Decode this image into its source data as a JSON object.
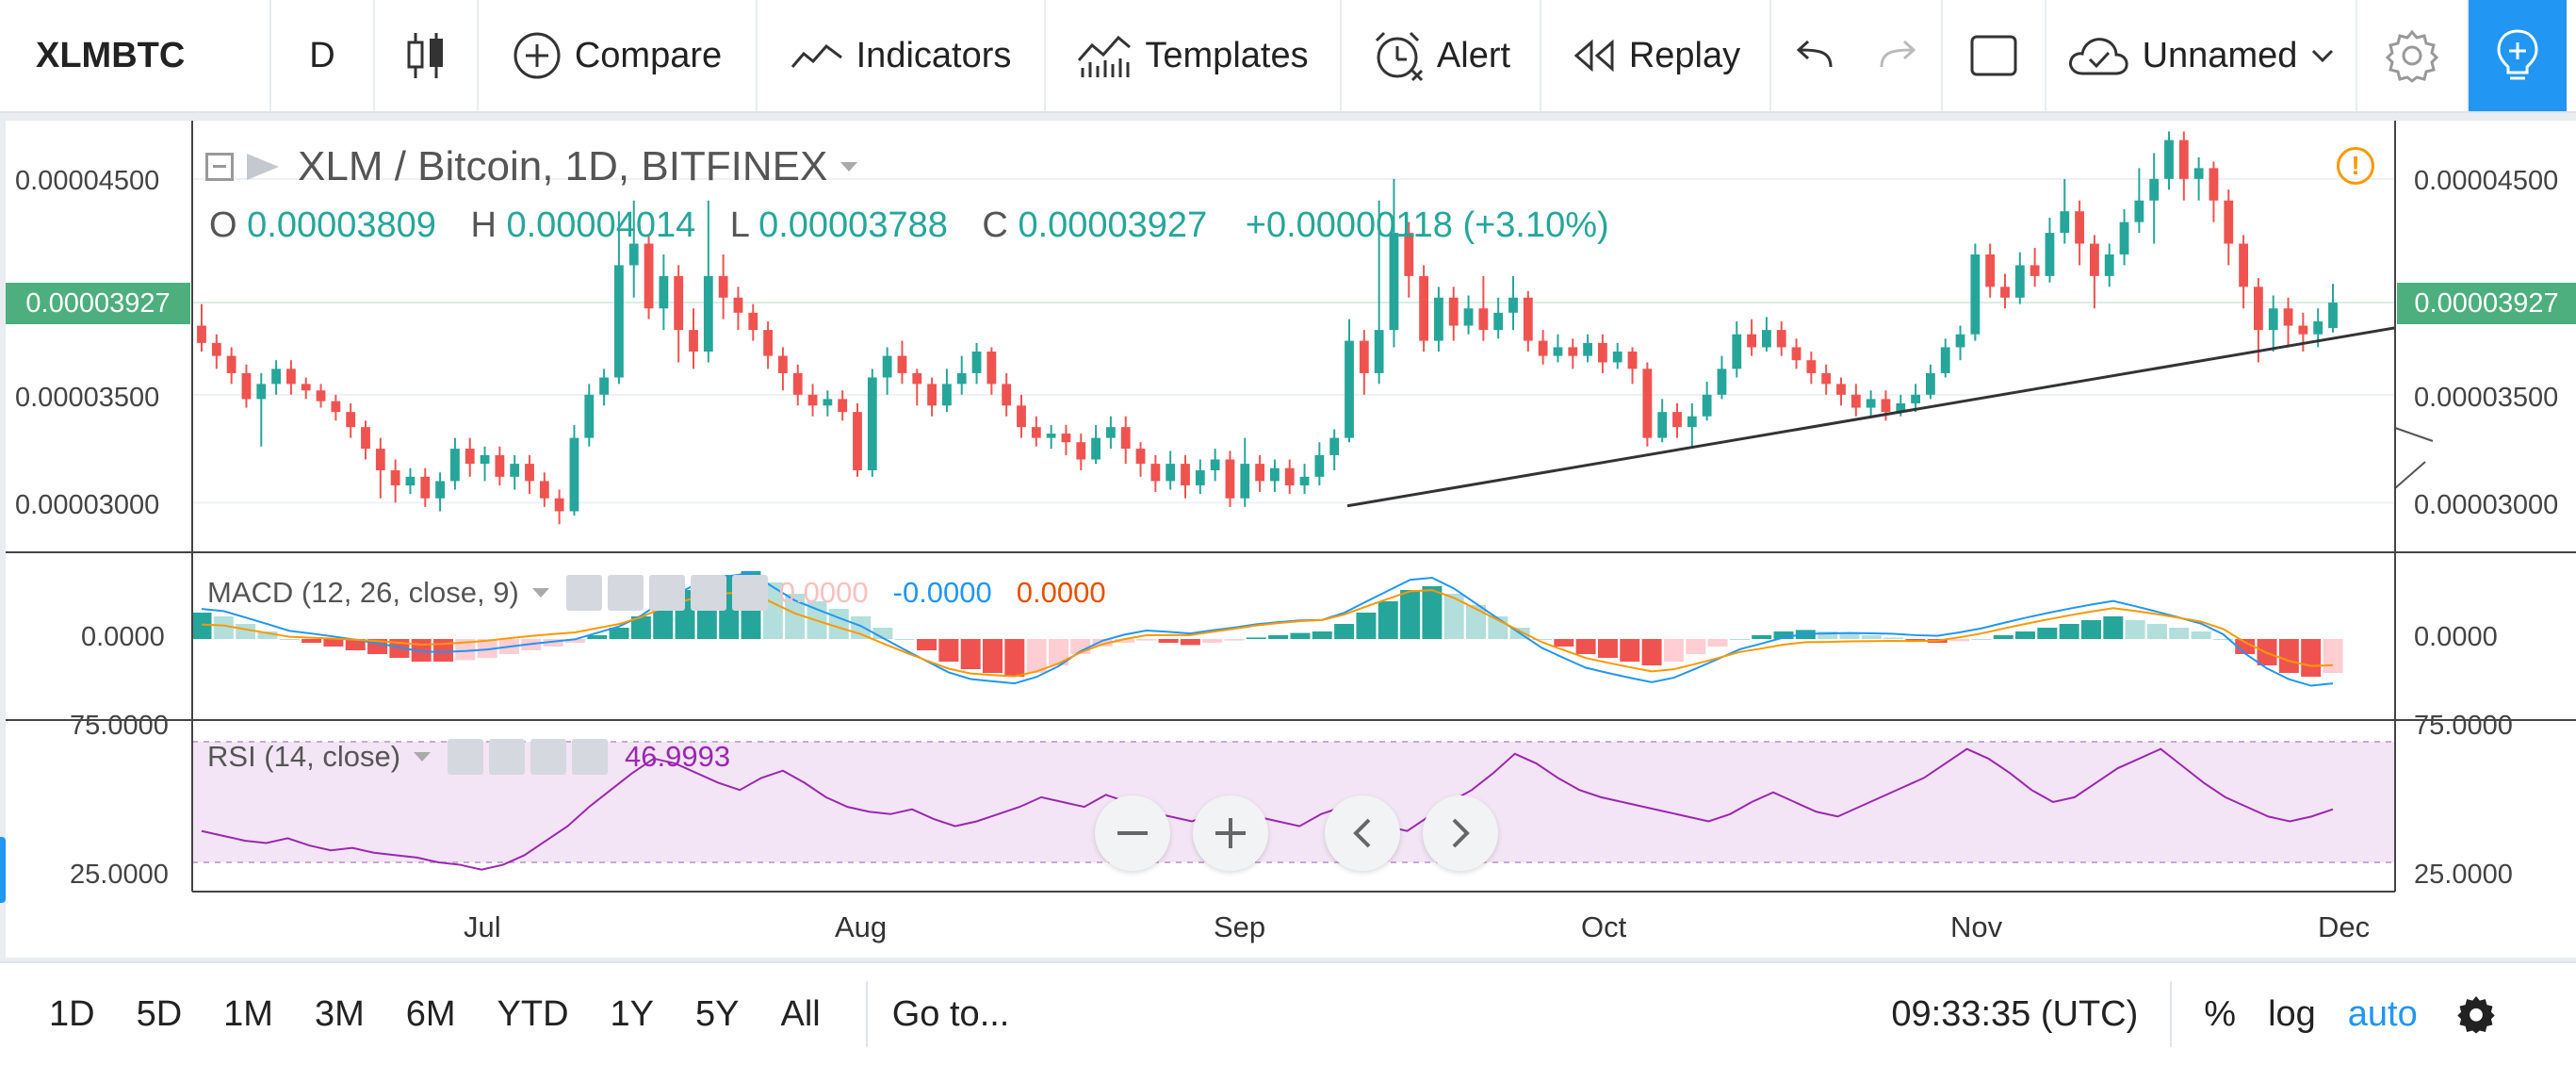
{
  "toolbar": {
    "symbol": "XLMBTC",
    "interval": "D",
    "compare": "Compare",
    "indicators": "Indicators",
    "templates": "Templates",
    "alert": "Alert",
    "replay": "Replay",
    "layout_name": "Unnamed"
  },
  "main": {
    "title": "XLM / Bitcoin, 1D, BITFINEX",
    "o_label": "O",
    "o_value": "0.00003809",
    "h_label": "H",
    "h_value": "0.00004014",
    "l_label": "L",
    "l_value": "0.00003788",
    "c_label": "C",
    "c_value": "0.00003927",
    "change": "+0.00000118 (+3.10%)",
    "price_ticks": [
      "0.00004500",
      "0.00003500",
      "0.00003000"
    ],
    "last_price": "0.00003927"
  },
  "macd": {
    "title": "MACD (12, 26, close, 9)",
    "val1": "0.0000",
    "val2": "-0.0000",
    "val3": "0.0000",
    "axis": "0.0000"
  },
  "rsi": {
    "title": "RSI (14, close)",
    "value": "46.9993",
    "axis_top": "75.0000",
    "axis_bottom": "25.0000"
  },
  "time_axis": [
    "Jul",
    "Aug",
    "Sep",
    "Oct",
    "Nov",
    "Dec"
  ],
  "bottom": {
    "ranges": [
      "1D",
      "5D",
      "1M",
      "3M",
      "6M",
      "YTD",
      "1Y",
      "5Y",
      "All"
    ],
    "goto": "Go to...",
    "time": "09:33:35 (UTC)",
    "percent": "%",
    "log": "log",
    "auto": "auto"
  },
  "colors": {
    "up": "#26a69a",
    "down": "#ef5350",
    "up_light": "#b2dfdb",
    "down_light": "#ffcdd2",
    "macd_line": "#2196f3",
    "signal_line": "#ff9800",
    "rsi_line": "#9c27b0",
    "rsi_band": "#f3e5f5",
    "accent": "#2196f3"
  },
  "chart_data": {
    "type": "candlestick",
    "xlabel": "",
    "ylabel": "",
    "ylim": [
      2.77e-05,
      4.77e-05
    ],
    "candles": [
      {
        "o": 3.82,
        "c": 3.74,
        "h": 3.92,
        "l": 3.7
      },
      {
        "o": 3.74,
        "c": 3.68,
        "h": 3.78,
        "l": 3.62
      },
      {
        "o": 3.68,
        "c": 3.6,
        "h": 3.72,
        "l": 3.55
      },
      {
        "o": 3.6,
        "c": 3.48,
        "h": 3.64,
        "l": 3.44
      },
      {
        "o": 3.48,
        "c": 3.55,
        "h": 3.6,
        "l": 3.26
      },
      {
        "o": 3.55,
        "c": 3.62,
        "h": 3.66,
        "l": 3.5
      },
      {
        "o": 3.62,
        "c": 3.55,
        "h": 3.66,
        "l": 3.5
      },
      {
        "o": 3.55,
        "c": 3.52,
        "h": 3.58,
        "l": 3.48
      },
      {
        "o": 3.52,
        "c": 3.47,
        "h": 3.55,
        "l": 3.44
      },
      {
        "o": 3.47,
        "c": 3.42,
        "h": 3.5,
        "l": 3.38
      },
      {
        "o": 3.42,
        "c": 3.35,
        "h": 3.46,
        "l": 3.3
      },
      {
        "o": 3.35,
        "c": 3.25,
        "h": 3.38,
        "l": 3.2
      },
      {
        "o": 3.25,
        "c": 3.15,
        "h": 3.3,
        "l": 3.02
      },
      {
        "o": 3.15,
        "c": 3.08,
        "h": 3.2,
        "l": 3.0
      },
      {
        "o": 3.08,
        "c": 3.12,
        "h": 3.16,
        "l": 3.04
      },
      {
        "o": 3.12,
        "c": 3.02,
        "h": 3.16,
        "l": 2.98
      },
      {
        "o": 3.02,
        "c": 3.1,
        "h": 3.14,
        "l": 2.96
      },
      {
        "o": 3.1,
        "c": 3.25,
        "h": 3.3,
        "l": 3.06
      },
      {
        "o": 3.25,
        "c": 3.18,
        "h": 3.3,
        "l": 3.12
      },
      {
        "o": 3.18,
        "c": 3.22,
        "h": 3.26,
        "l": 3.1
      },
      {
        "o": 3.22,
        "c": 3.12,
        "h": 3.26,
        "l": 3.08
      },
      {
        "o": 3.12,
        "c": 3.18,
        "h": 3.22,
        "l": 3.06
      },
      {
        "o": 3.18,
        "c": 3.1,
        "h": 3.22,
        "l": 3.04
      },
      {
        "o": 3.1,
        "c": 3.02,
        "h": 3.14,
        "l": 2.98
      },
      {
        "o": 3.02,
        "c": 2.96,
        "h": 3.06,
        "l": 2.9
      },
      {
        "o": 2.96,
        "c": 3.3,
        "h": 3.36,
        "l": 2.94
      },
      {
        "o": 3.3,
        "c": 3.5,
        "h": 3.55,
        "l": 3.26
      },
      {
        "o": 3.5,
        "c": 3.58,
        "h": 3.62,
        "l": 3.45
      },
      {
        "o": 3.58,
        "c": 4.1,
        "h": 4.35,
        "l": 3.55
      },
      {
        "o": 4.1,
        "c": 4.2,
        "h": 4.4,
        "l": 3.95
      },
      {
        "o": 4.2,
        "c": 3.9,
        "h": 4.24,
        "l": 3.85
      },
      {
        "o": 3.9,
        "c": 4.05,
        "h": 4.15,
        "l": 3.8
      },
      {
        "o": 4.05,
        "c": 3.8,
        "h": 4.1,
        "l": 3.65
      },
      {
        "o": 3.8,
        "c": 3.7,
        "h": 3.9,
        "l": 3.62
      },
      {
        "o": 3.7,
        "c": 4.05,
        "h": 4.4,
        "l": 3.65
      },
      {
        "o": 4.05,
        "c": 3.95,
        "h": 4.15,
        "l": 3.85
      },
      {
        "o": 3.95,
        "c": 3.88,
        "h": 4.0,
        "l": 3.8
      },
      {
        "o": 3.88,
        "c": 3.8,
        "h": 3.92,
        "l": 3.75
      },
      {
        "o": 3.8,
        "c": 3.68,
        "h": 3.84,
        "l": 3.62
      },
      {
        "o": 3.68,
        "c": 3.6,
        "h": 3.72,
        "l": 3.52
      },
      {
        "o": 3.6,
        "c": 3.5,
        "h": 3.64,
        "l": 3.45
      },
      {
        "o": 3.5,
        "c": 3.45,
        "h": 3.55,
        "l": 3.4
      },
      {
        "o": 3.45,
        "c": 3.48,
        "h": 3.52,
        "l": 3.4
      },
      {
        "o": 3.48,
        "c": 3.42,
        "h": 3.52,
        "l": 3.38
      },
      {
        "o": 3.42,
        "c": 3.15,
        "h": 3.46,
        "l": 3.12
      },
      {
        "o": 3.15,
        "c": 3.58,
        "h": 3.62,
        "l": 3.12
      },
      {
        "o": 3.58,
        "c": 3.68,
        "h": 3.72,
        "l": 3.5
      },
      {
        "o": 3.68,
        "c": 3.6,
        "h": 3.75,
        "l": 3.55
      },
      {
        "o": 3.6,
        "c": 3.55,
        "h": 3.62,
        "l": 3.45
      },
      {
        "o": 3.55,
        "c": 3.45,
        "h": 3.58,
        "l": 3.4
      },
      {
        "o": 3.45,
        "c": 3.55,
        "h": 3.62,
        "l": 3.42
      },
      {
        "o": 3.55,
        "c": 3.6,
        "h": 3.68,
        "l": 3.5
      },
      {
        "o": 3.6,
        "c": 3.7,
        "h": 3.74,
        "l": 3.55
      },
      {
        "o": 3.7,
        "c": 3.55,
        "h": 3.72,
        "l": 3.5
      },
      {
        "o": 3.55,
        "c": 3.45,
        "h": 3.6,
        "l": 3.4
      },
      {
        "o": 3.45,
        "c": 3.35,
        "h": 3.5,
        "l": 3.3
      },
      {
        "o": 3.35,
        "c": 3.3,
        "h": 3.4,
        "l": 3.26
      },
      {
        "o": 3.3,
        "c": 3.32,
        "h": 3.36,
        "l": 3.25
      },
      {
        "o": 3.32,
        "c": 3.28,
        "h": 3.36,
        "l": 3.22
      },
      {
        "o": 3.28,
        "c": 3.2,
        "h": 3.32,
        "l": 3.15
      },
      {
        "o": 3.2,
        "c": 3.3,
        "h": 3.36,
        "l": 3.18
      },
      {
        "o": 3.3,
        "c": 3.35,
        "h": 3.4,
        "l": 3.25
      },
      {
        "o": 3.35,
        "c": 3.25,
        "h": 3.4,
        "l": 3.18
      },
      {
        "o": 3.25,
        "c": 3.18,
        "h": 3.28,
        "l": 3.12
      },
      {
        "o": 3.18,
        "c": 3.1,
        "h": 3.22,
        "l": 3.05
      },
      {
        "o": 3.1,
        "c": 3.18,
        "h": 3.24,
        "l": 3.06
      },
      {
        "o": 3.18,
        "c": 3.08,
        "h": 3.22,
        "l": 3.02
      },
      {
        "o": 3.08,
        "c": 3.15,
        "h": 3.2,
        "l": 3.04
      },
      {
        "o": 3.15,
        "c": 3.2,
        "h": 3.25,
        "l": 3.1
      },
      {
        "o": 3.2,
        "c": 3.02,
        "h": 3.24,
        "l": 2.98
      },
      {
        "o": 3.02,
        "c": 3.18,
        "h": 3.3,
        "l": 2.98
      },
      {
        "o": 3.18,
        "c": 3.1,
        "h": 3.22,
        "l": 3.05
      },
      {
        "o": 3.1,
        "c": 3.16,
        "h": 3.2,
        "l": 3.05
      },
      {
        "o": 3.16,
        "c": 3.08,
        "h": 3.2,
        "l": 3.04
      },
      {
        "o": 3.08,
        "c": 3.12,
        "h": 3.18,
        "l": 3.04
      },
      {
        "o": 3.12,
        "c": 3.22,
        "h": 3.28,
        "l": 3.08
      },
      {
        "o": 3.22,
        "c": 3.3,
        "h": 3.34,
        "l": 3.15
      },
      {
        "o": 3.3,
        "c": 3.75,
        "h": 3.85,
        "l": 3.28
      },
      {
        "o": 3.75,
        "c": 3.6,
        "h": 3.8,
        "l": 3.5
      },
      {
        "o": 3.6,
        "c": 3.8,
        "h": 4.4,
        "l": 3.55
      },
      {
        "o": 3.8,
        "c": 4.25,
        "h": 4.5,
        "l": 3.72
      },
      {
        "o": 4.25,
        "c": 4.05,
        "h": 4.3,
        "l": 3.95
      },
      {
        "o": 4.05,
        "c": 3.75,
        "h": 4.1,
        "l": 3.7
      },
      {
        "o": 3.75,
        "c": 3.95,
        "h": 4.0,
        "l": 3.7
      },
      {
        "o": 3.95,
        "c": 3.82,
        "h": 4.0,
        "l": 3.75
      },
      {
        "o": 3.82,
        "c": 3.9,
        "h": 3.96,
        "l": 3.78
      },
      {
        "o": 3.9,
        "c": 3.8,
        "h": 4.05,
        "l": 3.75
      },
      {
        "o": 3.8,
        "c": 3.88,
        "h": 3.95,
        "l": 3.76
      },
      {
        "o": 3.88,
        "c": 3.95,
        "h": 4.05,
        "l": 3.8
      },
      {
        "o": 3.95,
        "c": 3.75,
        "h": 3.98,
        "l": 3.7
      },
      {
        "o": 3.75,
        "c": 3.68,
        "h": 3.8,
        "l": 3.64
      },
      {
        "o": 3.68,
        "c": 3.72,
        "h": 3.78,
        "l": 3.65
      },
      {
        "o": 3.72,
        "c": 3.68,
        "h": 3.76,
        "l": 3.62
      },
      {
        "o": 3.68,
        "c": 3.74,
        "h": 3.78,
        "l": 3.65
      },
      {
        "o": 3.74,
        "c": 3.65,
        "h": 3.78,
        "l": 3.6
      },
      {
        "o": 3.65,
        "c": 3.7,
        "h": 3.74,
        "l": 3.62
      },
      {
        "o": 3.7,
        "c": 3.62,
        "h": 3.72,
        "l": 3.55
      },
      {
        "o": 3.62,
        "c": 3.3,
        "h": 3.65,
        "l": 3.26
      },
      {
        "o": 3.3,
        "c": 3.42,
        "h": 3.48,
        "l": 3.28
      },
      {
        "o": 3.42,
        "c": 3.35,
        "h": 3.46,
        "l": 3.3
      },
      {
        "o": 3.35,
        "c": 3.4,
        "h": 3.46,
        "l": 3.25
      },
      {
        "o": 3.4,
        "c": 3.5,
        "h": 3.56,
        "l": 3.38
      },
      {
        "o": 3.5,
        "c": 3.62,
        "h": 3.68,
        "l": 3.48
      },
      {
        "o": 3.62,
        "c": 3.78,
        "h": 3.84,
        "l": 3.58
      },
      {
        "o": 3.78,
        "c": 3.72,
        "h": 3.85,
        "l": 3.68
      },
      {
        "o": 3.72,
        "c": 3.8,
        "h": 3.86,
        "l": 3.7
      },
      {
        "o": 3.8,
        "c": 3.72,
        "h": 3.84,
        "l": 3.68
      },
      {
        "o": 3.72,
        "c": 3.66,
        "h": 3.76,
        "l": 3.62
      },
      {
        "o": 3.66,
        "c": 3.6,
        "h": 3.7,
        "l": 3.55
      },
      {
        "o": 3.6,
        "c": 3.55,
        "h": 3.64,
        "l": 3.5
      },
      {
        "o": 3.55,
        "c": 3.5,
        "h": 3.58,
        "l": 3.45
      },
      {
        "o": 3.5,
        "c": 3.44,
        "h": 3.55,
        "l": 3.4
      },
      {
        "o": 3.44,
        "c": 3.48,
        "h": 3.52,
        "l": 3.4
      },
      {
        "o": 3.48,
        "c": 3.42,
        "h": 3.52,
        "l": 3.38
      },
      {
        "o": 3.42,
        "c": 3.46,
        "h": 3.5,
        "l": 3.4
      },
      {
        "o": 3.46,
        "c": 3.5,
        "h": 3.55,
        "l": 3.42
      },
      {
        "o": 3.5,
        "c": 3.6,
        "h": 3.64,
        "l": 3.48
      },
      {
        "o": 3.6,
        "c": 3.72,
        "h": 3.76,
        "l": 3.58
      },
      {
        "o": 3.72,
        "c": 3.78,
        "h": 3.82,
        "l": 3.66
      },
      {
        "o": 3.78,
        "c": 4.15,
        "h": 4.2,
        "l": 3.75
      },
      {
        "o": 4.15,
        "c": 4.0,
        "h": 4.2,
        "l": 3.95
      },
      {
        "o": 4.0,
        "c": 3.95,
        "h": 4.06,
        "l": 3.9
      },
      {
        "o": 3.95,
        "c": 4.1,
        "h": 4.16,
        "l": 3.92
      },
      {
        "o": 4.1,
        "c": 4.05,
        "h": 4.18,
        "l": 4.0
      },
      {
        "o": 4.05,
        "c": 4.25,
        "h": 4.32,
        "l": 4.02
      },
      {
        "o": 4.25,
        "c": 4.35,
        "h": 4.5,
        "l": 4.2
      },
      {
        "o": 4.35,
        "c": 4.2,
        "h": 4.4,
        "l": 4.1
      },
      {
        "o": 4.2,
        "c": 4.05,
        "h": 4.24,
        "l": 3.9
      },
      {
        "o": 4.05,
        "c": 4.15,
        "h": 4.2,
        "l": 4.0
      },
      {
        "o": 4.15,
        "c": 4.3,
        "h": 4.36,
        "l": 4.1
      },
      {
        "o": 4.3,
        "c": 4.4,
        "h": 4.55,
        "l": 4.25
      },
      {
        "o": 4.4,
        "c": 4.5,
        "h": 4.62,
        "l": 4.2
      },
      {
        "o": 4.5,
        "c": 4.68,
        "h": 4.72,
        "l": 4.45
      },
      {
        "o": 4.68,
        "c": 4.5,
        "h": 4.72,
        "l": 4.4
      },
      {
        "o": 4.5,
        "c": 4.55,
        "h": 4.6,
        "l": 4.4
      },
      {
        "o": 4.55,
        "c": 4.4,
        "h": 4.58,
        "l": 4.3
      },
      {
        "o": 4.4,
        "c": 4.2,
        "h": 4.45,
        "l": 4.1
      },
      {
        "o": 4.2,
        "c": 4.0,
        "h": 4.24,
        "l": 3.9
      },
      {
        "o": 4.0,
        "c": 3.8,
        "h": 4.04,
        "l": 3.65
      },
      {
        "o": 3.8,
        "c": 3.9,
        "h": 3.96,
        "l": 3.7
      },
      {
        "o": 3.9,
        "c": 3.82,
        "h": 3.95,
        "l": 3.72
      },
      {
        "o": 3.82,
        "c": 3.78,
        "h": 3.88,
        "l": 3.7
      },
      {
        "o": 3.78,
        "c": 3.84,
        "h": 3.9,
        "l": 3.72
      },
      {
        "o": 3.809,
        "c": 3.927,
        "h": 4.014,
        "l": 3.788
      }
    ],
    "candle_scale": "1e-5",
    "x_ticks": [
      "Jul",
      "Aug",
      "Sep",
      "Oct",
      "Nov",
      "Dec"
    ],
    "y_ticks": [
      4.5e-05,
      3.5e-05,
      3e-05
    ],
    "trendline": [
      [
        2.985e-05,
        "Sep"
      ],
      [
        3.81e-05,
        "Dec"
      ]
    ],
    "macd_hist": [
      0.35,
      0.3,
      0.2,
      0.1,
      0.0,
      -0.05,
      -0.1,
      -0.15,
      -0.2,
      -0.25,
      -0.3,
      -0.3,
      -0.28,
      -0.25,
      -0.2,
      -0.15,
      -0.1,
      -0.05,
      0.05,
      0.15,
      0.3,
      0.5,
      0.65,
      0.8,
      0.85,
      0.9,
      0.75,
      0.6,
      0.5,
      0.4,
      0.3,
      0.15,
      0.0,
      -0.15,
      -0.3,
      -0.4,
      -0.45,
      -0.5,
      -0.45,
      -0.35,
      -0.2,
      -0.1,
      -0.05,
      -0.02,
      -0.05,
      -0.08,
      -0.05,
      -0.02,
      0.02,
      0.05,
      0.08,
      0.1,
      0.2,
      0.35,
      0.5,
      0.65,
      0.7,
      0.6,
      0.45,
      0.3,
      0.15,
      0.0,
      -0.1,
      -0.2,
      -0.25,
      -0.3,
      -0.35,
      -0.3,
      -0.2,
      -0.1,
      0.0,
      0.05,
      0.1,
      0.12,
      0.1,
      0.08,
      0.05,
      0.02,
      -0.02,
      -0.05,
      -0.03,
      0.0,
      0.05,
      0.1,
      0.15,
      0.2,
      0.25,
      0.3,
      0.25,
      0.2,
      0.15,
      0.1,
      0.0,
      -0.2,
      -0.35,
      -0.45,
      -0.5,
      -0.45
    ],
    "rsi": [
      38,
      36,
      34,
      33,
      35,
      32,
      30,
      31,
      29,
      28,
      27,
      25,
      24,
      22,
      24,
      28,
      34,
      40,
      48,
      55,
      62,
      68,
      66,
      62,
      58,
      55,
      60,
      63,
      58,
      52,
      48,
      46,
      45,
      47,
      43,
      40,
      42,
      45,
      48,
      52,
      50,
      48,
      53,
      50,
      46,
      44,
      42,
      45,
      48,
      44,
      42,
      40,
      45,
      48,
      44,
      40,
      38,
      44,
      50,
      55,
      62,
      70,
      66,
      60,
      55,
      52,
      50,
      48,
      46,
      44,
      42,
      45,
      50,
      54,
      50,
      46,
      44,
      48,
      52,
      56,
      60,
      66,
      72,
      68,
      62,
      55,
      50,
      52,
      58,
      64,
      68,
      72,
      65,
      58,
      52,
      48,
      44,
      42,
      44,
      47
    ]
  }
}
